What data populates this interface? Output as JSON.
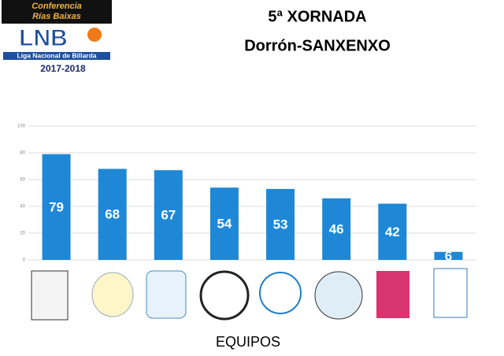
{
  "logo": {
    "line1": "Conferencia",
    "line2": "Rías Baixas",
    "brand": "LNB",
    "league": "Liga Nacional de Billarda",
    "season": "2017-2018"
  },
  "chart_data": {
    "type": "bar",
    "title": "5ª XORNADA",
    "subtitle": "Dorrón-SANXENXO",
    "x_label": "EQUIPOS",
    "categories": [
      null,
      null,
      null,
      null,
      null,
      null,
      null,
      null
    ],
    "values": [
      79,
      68,
      67,
      54,
      53,
      46,
      42,
      6
    ],
    "color": "#1f88d6",
    "ylim": [
      0,
      100
    ],
    "yticks": [
      0,
      20,
      40,
      60,
      80,
      100
    ],
    "grid": true
  }
}
